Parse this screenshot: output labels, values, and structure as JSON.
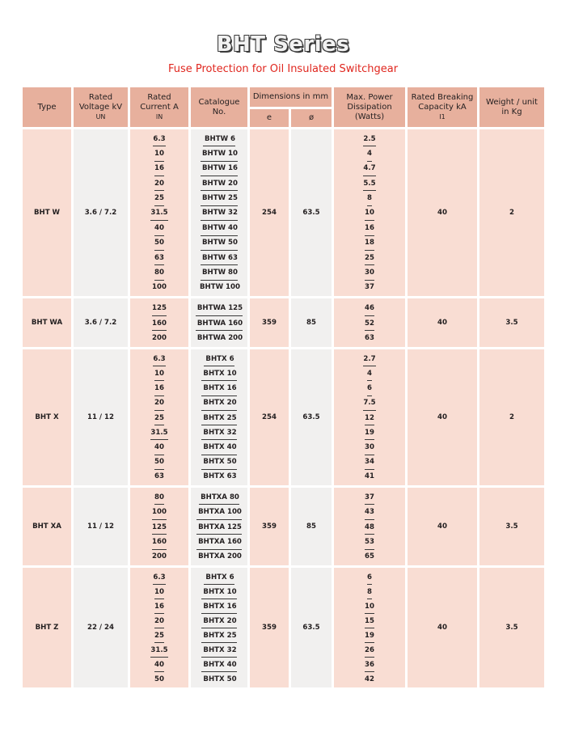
{
  "title": "BHT Series",
  "subtitle": "Fuse Protection for Oil Insulated Switchgear",
  "headers": {
    "type": "Type",
    "voltage": "Rated Voltage kV",
    "voltage_sub": "UN",
    "current": "Rated Current A",
    "current_sub": "IN",
    "catalogue": "Catalogue No.",
    "dimensions": "Dimensions in mm",
    "dim_e": "e",
    "dim_phi": "ø",
    "power": "Max. Power Dissipation (Watts)",
    "breaking": "Rated Breaking Capacity kA",
    "breaking_sub": "I1",
    "weight": "Weight / unit in Kg"
  },
  "groups": [
    {
      "type": "BHT W",
      "voltage": "3.6 / 7.2",
      "currents": [
        "6.3",
        "10",
        "16",
        "20",
        "25",
        "31.5",
        "40",
        "50",
        "63",
        "80",
        "100"
      ],
      "catalogue": [
        "BHTW 6",
        "BHTW 10",
        "BHTW 16",
        "BHTW 20",
        "BHTW 25",
        "BHTW 32",
        "BHTW 40",
        "BHTW 50",
        "BHTW 63",
        "BHTW 80",
        "BHTW 100"
      ],
      "dim_e": "254",
      "dim_phi": "63.5",
      "power": [
        "2.5",
        "4",
        "4.7",
        "5.5",
        "8",
        "10",
        "16",
        "18",
        "25",
        "30",
        "37"
      ],
      "breaking": "40",
      "weight": "2"
    },
    {
      "type": "BHT WA",
      "voltage": "3.6 / 7.2",
      "currents": [
        "125",
        "160",
        "200"
      ],
      "catalogue": [
        "BHTWA 125",
        "BHTWA 160",
        "BHTWA 200"
      ],
      "dim_e": "359",
      "dim_phi": "85",
      "power": [
        "46",
        "52",
        "63"
      ],
      "breaking": "40",
      "weight": "3.5"
    },
    {
      "type": "BHT X",
      "voltage": "11 / 12",
      "currents": [
        "6.3",
        "10",
        "16",
        "20",
        "25",
        "31.5",
        "40",
        "50",
        "63"
      ],
      "catalogue": [
        "BHTX 6",
        "BHTX 10",
        "BHTX 16",
        "BHTX 20",
        "BHTX 25",
        "BHTX 32",
        "BHTX 40",
        "BHTX 50",
        "BHTX 63"
      ],
      "dim_e": "254",
      "dim_phi": "63.5",
      "power": [
        "2.7",
        "4",
        "6",
        "7.5",
        "12",
        "19",
        "30",
        "34",
        "41"
      ],
      "breaking": "40",
      "weight": "2"
    },
    {
      "type": "BHT XA",
      "voltage": "11 / 12",
      "currents": [
        "80",
        "100",
        "125",
        "160",
        "200"
      ],
      "catalogue": [
        "BHTXA 80",
        "BHTXA 100",
        "BHTXA 125",
        "BHTXA 160",
        "BHTXA 200"
      ],
      "dim_e": "359",
      "dim_phi": "85",
      "power": [
        "37",
        "43",
        "48",
        "53",
        "65"
      ],
      "breaking": "40",
      "weight": "3.5"
    },
    {
      "type": "BHT Z",
      "voltage": "22 / 24",
      "currents": [
        "6.3",
        "10",
        "16",
        "20",
        "25",
        "31.5",
        "40",
        "50"
      ],
      "catalogue": [
        "BHTX 6",
        "BHTX 10",
        "BHTX 16",
        "BHTX 20",
        "BHTX 25",
        "BHTX 32",
        "BHTX 40",
        "BHTX 50"
      ],
      "dim_e": "359",
      "dim_phi": "63.5",
      "power": [
        "6",
        "8",
        "10",
        "15",
        "19",
        "26",
        "36",
        "42"
      ],
      "breaking": "40",
      "weight": "3.5"
    }
  ]
}
